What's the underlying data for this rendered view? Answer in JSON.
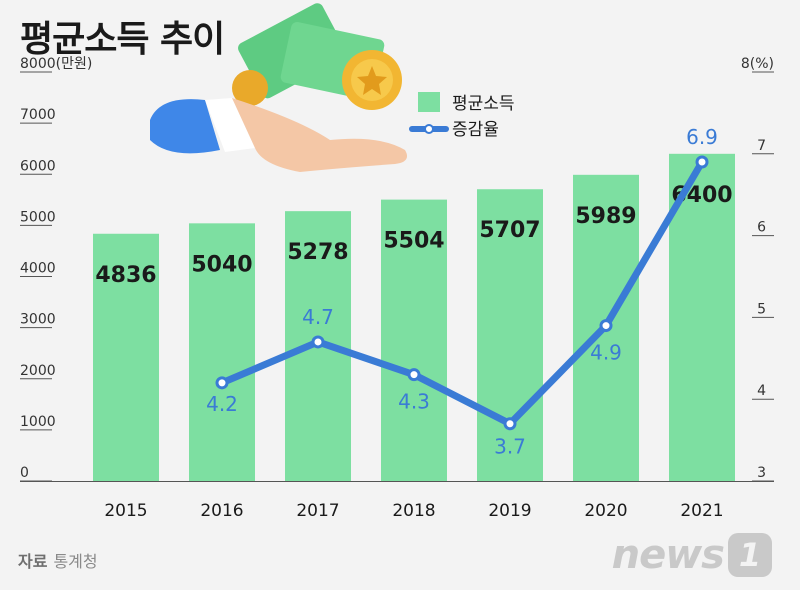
{
  "title": "평균소득 추이",
  "source": {
    "label": "자료",
    "value": "통계청"
  },
  "brand": {
    "text": "news",
    "badge": "1"
  },
  "colors": {
    "bar": "#7ddfa1",
    "line": "#3a7bd5",
    "grid": "#c9c9c9",
    "text": "#1a1a1a",
    "axis": "#333333"
  },
  "chart_data": {
    "type": "bar",
    "categories": [
      "2015",
      "2016",
      "2017",
      "2018",
      "2019",
      "2020",
      "2021"
    ],
    "y_left_label": "8000(만원)",
    "y_right_label": "8(%)",
    "y_left_ticks": [
      "0",
      "1000",
      "2000",
      "3000",
      "4000",
      "5000",
      "6000",
      "7000"
    ],
    "y_right_ticks": [
      "3",
      "4",
      "5",
      "6",
      "7"
    ],
    "ylim_left": [
      0,
      8000
    ],
    "ylim_right": [
      3,
      8
    ],
    "series": [
      {
        "name": "평균소득",
        "type": "bar",
        "axis": "left",
        "values": [
          4836,
          5040,
          5278,
          5504,
          5707,
          5989,
          6400
        ],
        "labels": [
          "4836",
          "5040",
          "5278",
          "5504",
          "5707",
          "5989",
          "6400"
        ]
      },
      {
        "name": "증감율",
        "type": "line",
        "axis": "right",
        "values": [
          null,
          4.2,
          4.7,
          4.3,
          3.7,
          4.9,
          6.9
        ],
        "labels": [
          "",
          "4.2",
          "4.7",
          "4.3",
          "3.7",
          "4.9",
          "6.9"
        ]
      }
    ],
    "legend_position": "top-center",
    "grid": false
  }
}
